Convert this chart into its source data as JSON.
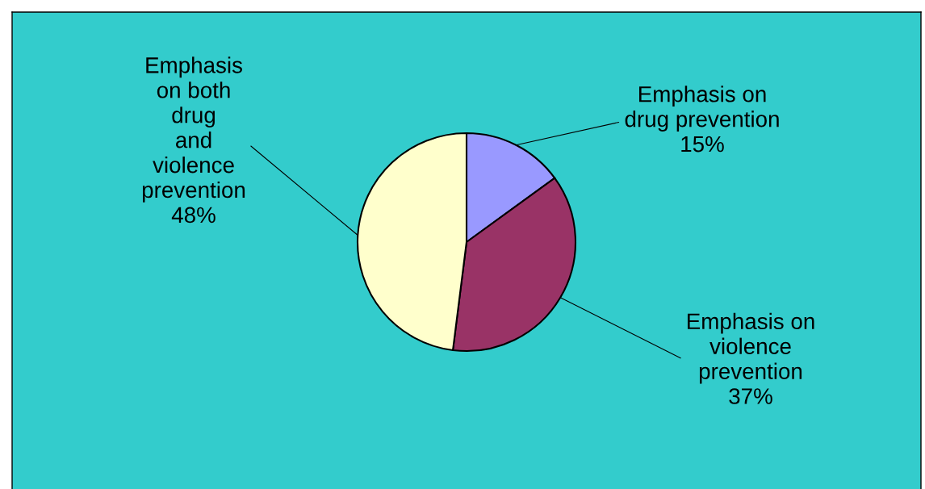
{
  "chart_data": {
    "type": "pie",
    "categories": [
      "Emphasis on drug prevention",
      "Emphasis on violence prevention",
      "Emphasis on both drug and violence prevention"
    ],
    "values": [
      15,
      37,
      48
    ],
    "colors": [
      "#9999ff",
      "#993366",
      "#ffffcc"
    ],
    "value_labels": [
      "15%",
      "37%",
      "48%"
    ]
  }
}
